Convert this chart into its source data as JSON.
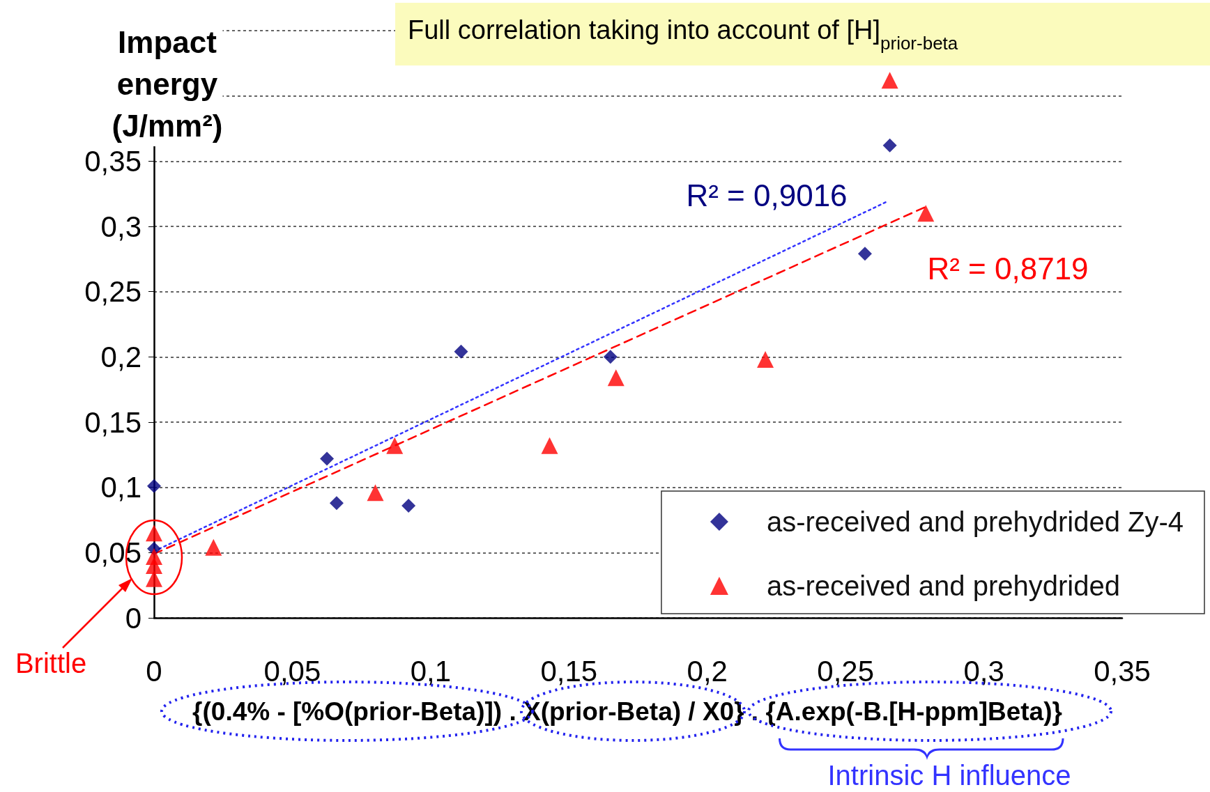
{
  "chart_data": {
    "type": "scatter",
    "title": "Full correlation taking into account of [H]$_{prior-beta}$",
    "xlabel": "{(0.4% - [%O(prior-Beta)]) . X(prior-Beta) / X0} . {A.exp(-B.[H-ppm]Beta)}",
    "ylabel": "Impact energy (J/mm²)",
    "xlim": [
      0,
      0.35
    ],
    "xticks": [
      0,
      {
        "value": 0.05,
        "label": "0,05"
      },
      {
        "value": 0.1,
        "label": "0,1"
      },
      {
        "value": 0.15,
        "label": "0,15"
      },
      {
        "value": 0.2,
        "label": "0,2"
      },
      {
        "value": 0.25,
        "label": "0,25"
      },
      {
        "value": 0.3,
        "label": "0,3"
      },
      {
        "value": 0.35,
        "label": "0,35"
      }
    ],
    "ylim": [
      0,
      0.45
    ],
    "yticks": [
      0,
      {
        "value": 0.05,
        "label": "0,05"
      },
      {
        "value": 0.1,
        "label": "0,1"
      },
      {
        "value": 0.15,
        "label": "0,15"
      },
      {
        "value": 0.2,
        "label": "0,2"
      },
      {
        "value": 0.25,
        "label": "0,25"
      },
      {
        "value": 0.3,
        "label": "0,3"
      },
      {
        "value": 0.35,
        "label": "0,35"
      },
      {
        "value": 0.4,
        "label": null
      },
      {
        "value": 0.45,
        "label": null
      }
    ],
    "grid": "y",
    "legend": "bottom right",
    "annotations": [
      "R² = 0,9016",
      "R² = 0,8719",
      "Brittle",
      "Intrinsic H influence"
    ],
    "series": [
      {
        "name": "as-received and prehydrided Zy-4",
        "type": "scatter",
        "marker": "diamond",
        "color": "#000080",
        "x": [
          0,
          0,
          0.0625,
          0.066,
          0.092,
          0.111,
          0.165,
          0.257,
          0.266
        ],
        "values": [
          0.101,
          0.053,
          0.122,
          0.088,
          0.086,
          0.204,
          0.2,
          0.279,
          0.362
        ]
      },
      {
        "name": "as-received and prehydrided",
        "type": "scatter",
        "marker": "triangle",
        "color": "#ff0000",
        "x": [
          0,
          0,
          0,
          0,
          0.0215,
          0.08,
          0.087,
          0.143,
          0.167,
          0.221,
          0.266,
          0.279
        ],
        "values": [
          0.065,
          0.047,
          0.04,
          0.03,
          0.054,
          0.096,
          0.132,
          0.132,
          0.184,
          0.198,
          0.412,
          0.31
        ]
      },
      {
        "type": "line",
        "marker": "none",
        "line_style": "dotted",
        "color": "#3333ff",
        "x": [
          0,
          0.265
        ],
        "values": [
          0.051,
          0.319
        ]
      },
      {
        "type": "line",
        "marker": "none",
        "line_style": "dashed",
        "color": "#ff0000",
        "x": [
          0,
          0.279
        ],
        "values": [
          0.049,
          0.315
        ]
      }
    ]
  }
}
